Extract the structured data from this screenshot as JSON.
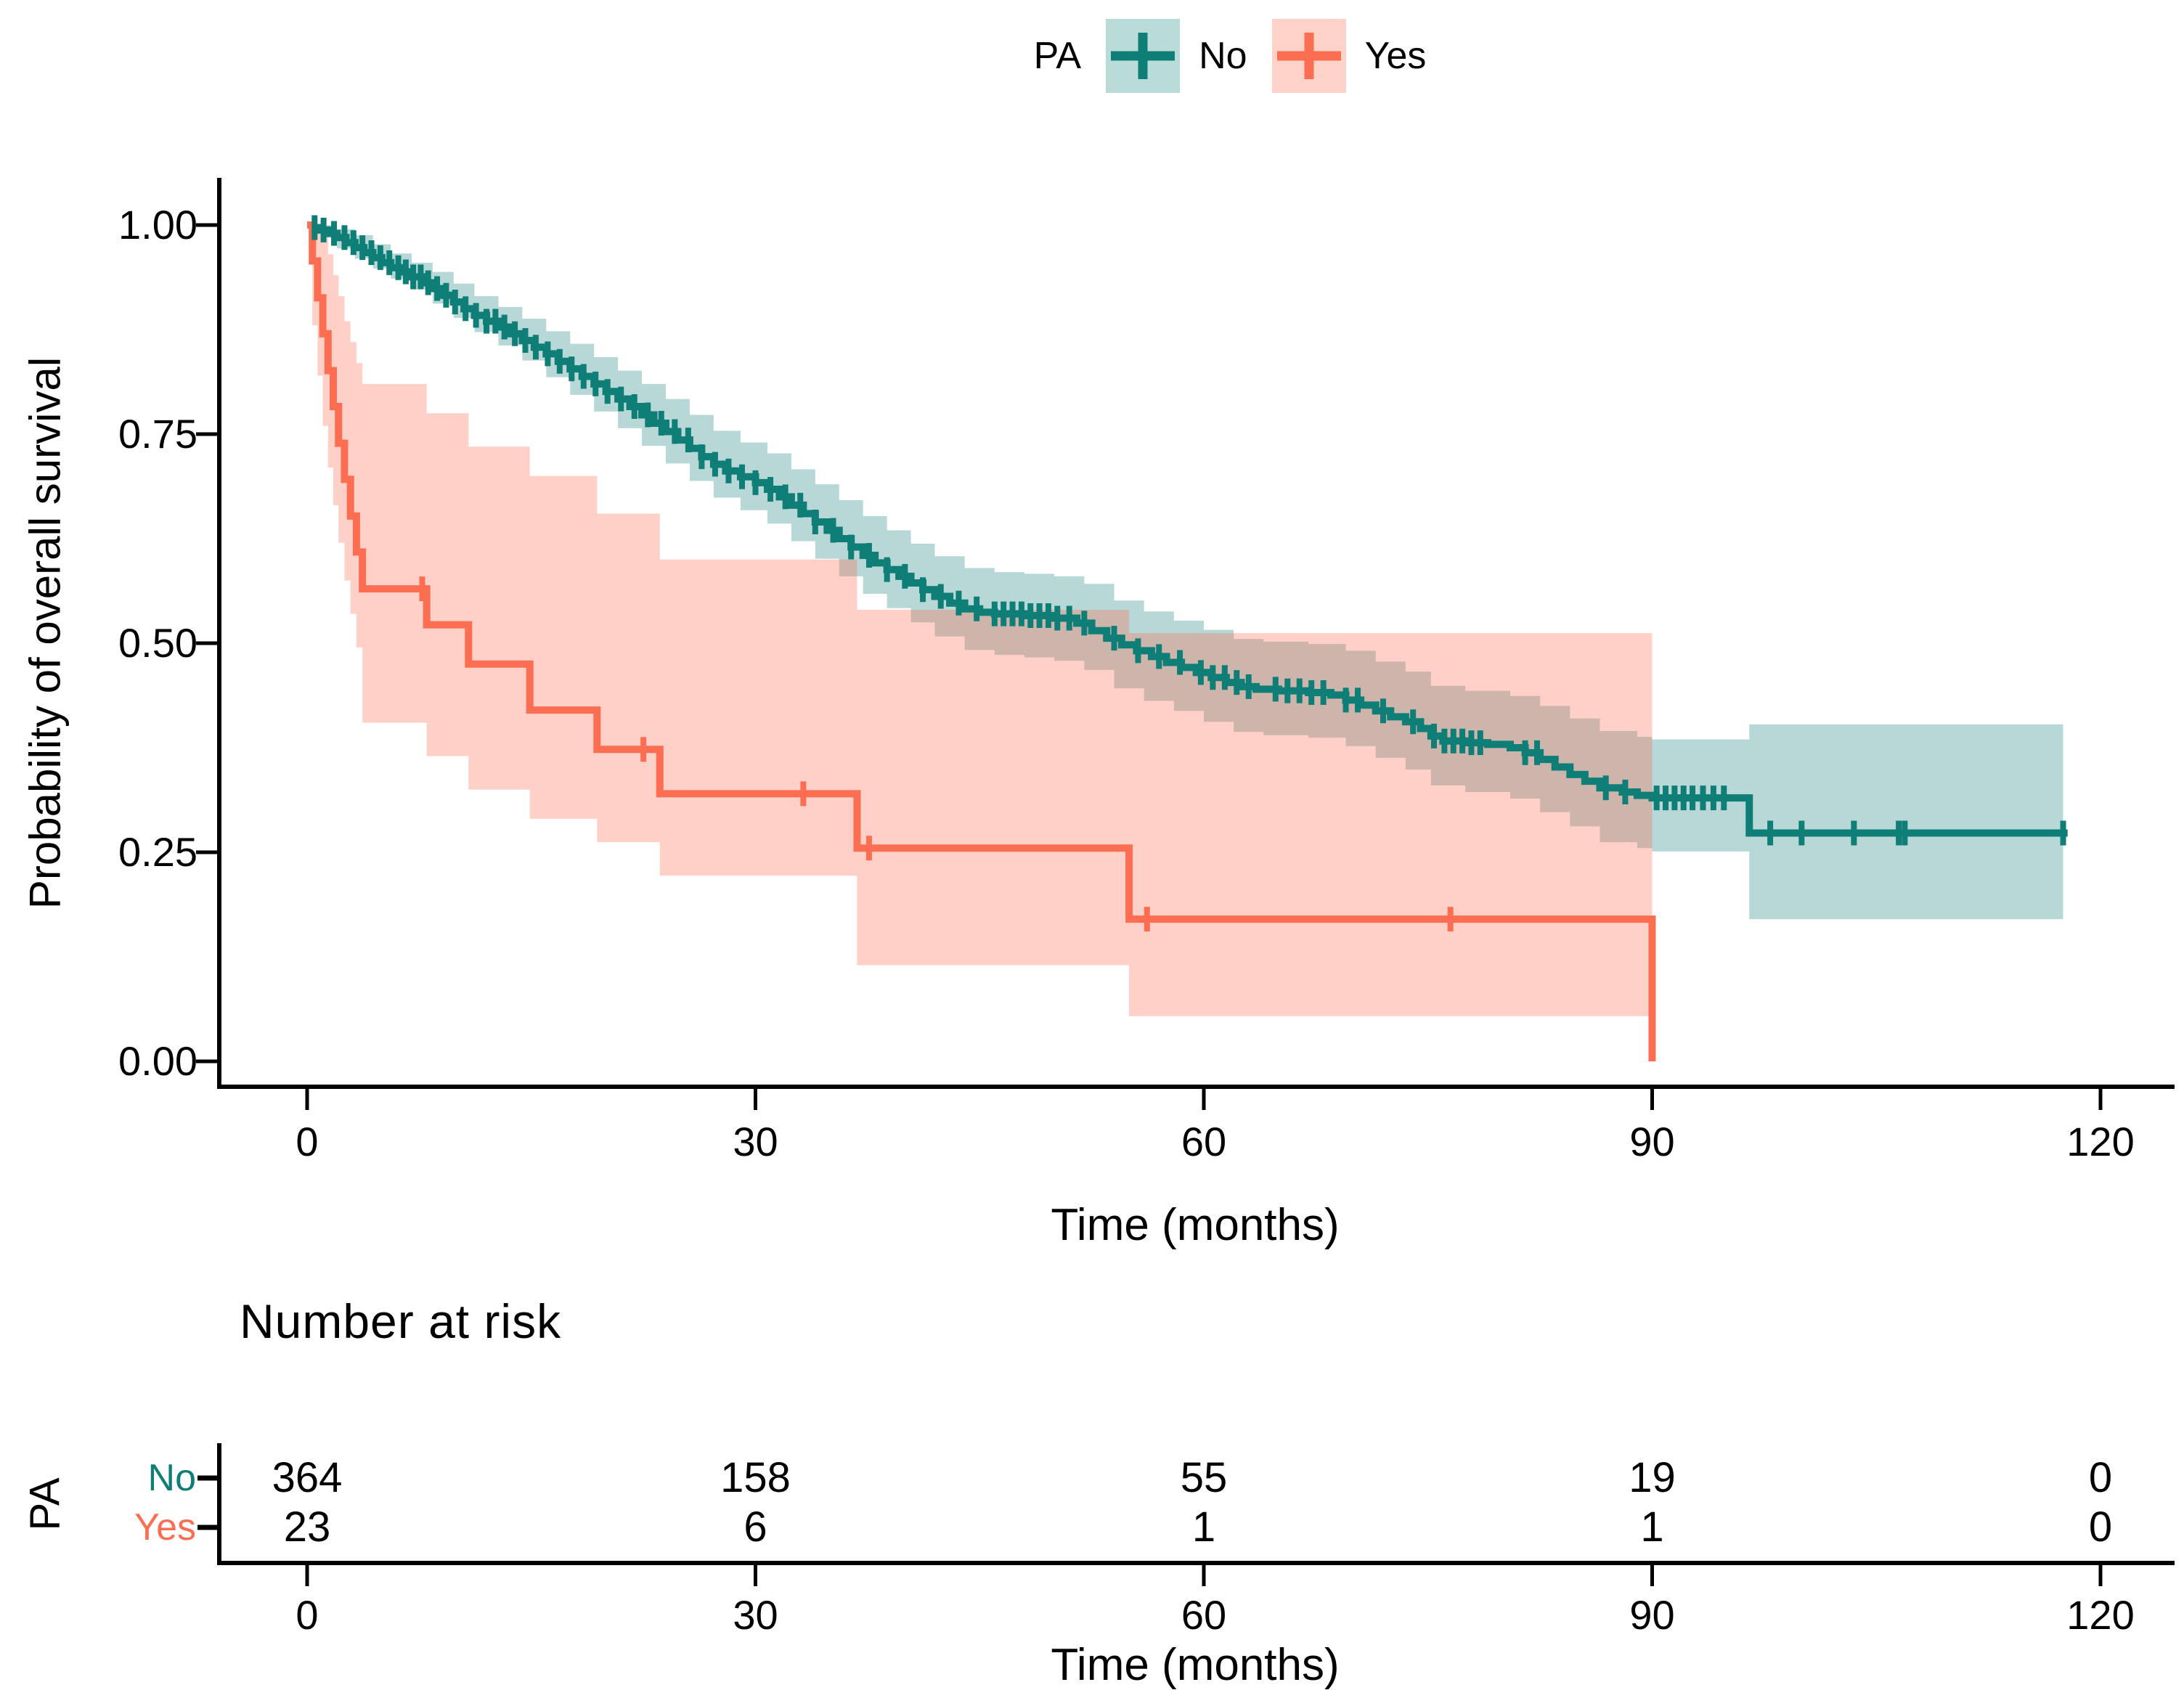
{
  "legend": {
    "title": "PA",
    "items": [
      {
        "label": "No",
        "color": "#0F7E77",
        "swatch": "#B9DCD8",
        "symbol": "plus-censor"
      },
      {
        "label": "Yes",
        "color": "#FB6E52",
        "swatch": "#FDD3C9",
        "symbol": "plus-censor"
      }
    ]
  },
  "chart_data": {
    "type": "line",
    "subtype": "kaplan-meier-step",
    "title": "",
    "xlabel": "Time (months)",
    "ylabel": "Probability of overall survival",
    "xlim": [
      0,
      120
    ],
    "ylim": [
      0,
      1
    ],
    "grid": false,
    "legend_position": "top",
    "x_ticks": [
      0,
      30,
      60,
      90,
      120
    ],
    "x_tick_labels": [
      "0",
      "30",
      "60",
      "90",
      "120"
    ],
    "y_ticks": [
      1.0,
      0.75,
      0.5,
      0.25,
      0.0
    ],
    "y_tick_labels": [
      "1.00",
      "0.75",
      "0.50",
      "0.25",
      "0.00"
    ],
    "series": [
      {
        "name": "No",
        "color": "#0F7E77",
        "band_opacity": 0.3,
        "band_end": 117.5,
        "steps": [
          [
            0,
            1.0
          ],
          [
            0.4,
            0.997
          ],
          [
            0.9,
            0.994
          ],
          [
            1.4,
            0.99
          ],
          [
            2,
            0.985
          ],
          [
            2.6,
            0.979
          ],
          [
            3.2,
            0.973
          ],
          [
            3.8,
            0.967
          ],
          [
            4.4,
            0.961
          ],
          [
            5,
            0.955
          ],
          [
            5.6,
            0.949
          ],
          [
            6.3,
            0.944
          ],
          [
            7,
            0.938
          ],
          [
            7.7,
            0.931
          ],
          [
            8.4,
            0.924
          ],
          [
            9.1,
            0.916
          ],
          [
            9.8,
            0.908
          ],
          [
            10.5,
            0.9
          ],
          [
            11.2,
            0.892
          ],
          [
            12,
            0.885
          ],
          [
            12.8,
            0.878
          ],
          [
            13.6,
            0.87
          ],
          [
            14.4,
            0.862
          ],
          [
            15.2,
            0.854
          ],
          [
            16,
            0.846
          ],
          [
            16.8,
            0.837
          ],
          [
            17.6,
            0.828
          ],
          [
            18.4,
            0.819
          ],
          [
            19.2,
            0.81
          ],
          [
            20,
            0.801
          ],
          [
            20.8,
            0.792
          ],
          [
            21.6,
            0.783
          ],
          [
            22.4,
            0.773
          ],
          [
            23.2,
            0.763
          ],
          [
            24,
            0.753
          ],
          [
            24.8,
            0.743
          ],
          [
            25.6,
            0.733
          ],
          [
            26.4,
            0.723
          ],
          [
            27.2,
            0.714
          ],
          [
            28,
            0.706
          ],
          [
            29,
            0.699
          ],
          [
            30,
            0.692
          ],
          [
            30.8,
            0.684
          ],
          [
            31.6,
            0.675
          ],
          [
            32.4,
            0.665
          ],
          [
            33.2,
            0.655
          ],
          [
            34,
            0.645
          ],
          [
            34.8,
            0.635
          ],
          [
            35.6,
            0.625
          ],
          [
            36.4,
            0.615
          ],
          [
            37.2,
            0.605
          ],
          [
            38,
            0.596
          ],
          [
            38.8,
            0.588
          ],
          [
            39.6,
            0.58
          ],
          [
            40.4,
            0.572
          ],
          [
            41.2,
            0.564
          ],
          [
            42,
            0.556
          ],
          [
            43,
            0.548
          ],
          [
            44,
            0.541
          ],
          [
            45,
            0.537
          ],
          [
            46,
            0.535
          ],
          [
            48,
            0.533
          ],
          [
            50,
            0.53
          ],
          [
            51.5,
            0.524
          ],
          [
            52.5,
            0.515
          ],
          [
            53.5,
            0.506
          ],
          [
            54.5,
            0.498
          ],
          [
            55.5,
            0.491
          ],
          [
            56.5,
            0.484
          ],
          [
            57.5,
            0.477
          ],
          [
            58.5,
            0.471
          ],
          [
            59.5,
            0.465
          ],
          [
            60.5,
            0.459
          ],
          [
            61.5,
            0.453
          ],
          [
            62.5,
            0.448
          ],
          [
            63.5,
            0.445
          ],
          [
            65,
            0.443
          ],
          [
            67,
            0.441
          ],
          [
            68.5,
            0.438
          ],
          [
            69.5,
            0.432
          ],
          [
            70.5,
            0.426
          ],
          [
            71.5,
            0.419
          ],
          [
            72.5,
            0.412
          ],
          [
            73.5,
            0.406
          ],
          [
            74.5,
            0.398
          ],
          [
            75.2,
            0.389
          ],
          [
            76,
            0.383
          ],
          [
            77.5,
            0.381
          ],
          [
            79,
            0.379
          ],
          [
            80.5,
            0.375
          ],
          [
            81.5,
            0.369
          ],
          [
            82.5,
            0.361
          ],
          [
            83.5,
            0.352
          ],
          [
            84.5,
            0.343
          ],
          [
            85.5,
            0.335
          ],
          [
            86.5,
            0.327
          ],
          [
            88,
            0.322
          ],
          [
            89,
            0.318
          ],
          [
            90,
            0.315
          ],
          [
            96.5,
            0.273
          ],
          [
            117.8,
            0.273
          ]
        ],
        "censors": [
          0.5,
          1.1,
          1.8,
          2.5,
          3.1,
          3.7,
          4.3,
          4.9,
          5.5,
          6.1,
          6.6,
          7.1,
          7.6,
          8.1,
          8.7,
          9.3,
          9.9,
          10.6,
          11.3,
          12,
          12.6,
          13.2,
          13.9,
          14.6,
          15.3,
          16.1,
          16.9,
          17.7,
          18.5,
          19.3,
          20.1,
          21,
          21.9,
          22.8,
          23.7,
          24.6,
          25.5,
          26.4,
          27.3,
          28.2,
          29.1,
          30,
          31,
          32,
          33,
          34,
          35.2,
          36.4,
          37.6,
          38.8,
          40,
          41.2,
          42.4,
          43.6,
          44.8,
          46,
          46.6,
          47.2,
          47.8,
          48.4,
          49,
          49.6,
          50.2,
          51,
          52,
          54,
          55.6,
          57,
          58.4,
          59.8,
          60.6,
          61.4,
          62.2,
          63,
          64.8,
          65.6,
          66.4,
          67.2,
          68,
          69.5,
          70.3,
          72,
          74,
          75.4,
          76.1,
          76.7,
          77.3,
          77.9,
          78.5,
          81.5,
          82.3,
          86.9,
          88.2,
          90.3,
          90.9,
          91.5,
          92.1,
          92.7,
          93.4,
          94.1,
          94.8,
          97.9,
          100,
          103.5,
          106.5,
          106.9,
          117.5
        ],
        "ci": [
          [
            0,
            1,
            1
          ],
          [
            0.9,
            0.985,
            1
          ],
          [
            2,
            0.972,
            0.995
          ],
          [
            3.2,
            0.96,
            0.988
          ],
          [
            4.4,
            0.948,
            0.977
          ],
          [
            5.6,
            0.936,
            0.966
          ],
          [
            7,
            0.923,
            0.955
          ],
          [
            8.4,
            0.906,
            0.944
          ],
          [
            9.8,
            0.889,
            0.93
          ],
          [
            11.2,
            0.872,
            0.915
          ],
          [
            12.8,
            0.856,
            0.902
          ],
          [
            14.4,
            0.838,
            0.888
          ],
          [
            16,
            0.818,
            0.873
          ],
          [
            17.6,
            0.797,
            0.858
          ],
          [
            19.2,
            0.777,
            0.842
          ],
          [
            20.8,
            0.757,
            0.826
          ],
          [
            22.4,
            0.736,
            0.81
          ],
          [
            24,
            0.715,
            0.792
          ],
          [
            25.6,
            0.694,
            0.773
          ],
          [
            27.2,
            0.674,
            0.754
          ],
          [
            29,
            0.659,
            0.74
          ],
          [
            30.8,
            0.643,
            0.727
          ],
          [
            32.4,
            0.622,
            0.708
          ],
          [
            34,
            0.601,
            0.69
          ],
          [
            35.6,
            0.58,
            0.671
          ],
          [
            37.2,
            0.559,
            0.652
          ],
          [
            38.8,
            0.542,
            0.635
          ],
          [
            40.4,
            0.525,
            0.619
          ],
          [
            42,
            0.508,
            0.604
          ],
          [
            44,
            0.492,
            0.59
          ],
          [
            46,
            0.486,
            0.585
          ],
          [
            48,
            0.483,
            0.583
          ],
          [
            50,
            0.479,
            0.58
          ],
          [
            52,
            0.468,
            0.571
          ],
          [
            54,
            0.446,
            0.551
          ],
          [
            56,
            0.431,
            0.538
          ],
          [
            58,
            0.419,
            0.527
          ],
          [
            60,
            0.406,
            0.516
          ],
          [
            62,
            0.394,
            0.505
          ],
          [
            64,
            0.39,
            0.502
          ],
          [
            67,
            0.387,
            0.499
          ],
          [
            69.5,
            0.377,
            0.491
          ],
          [
            71.5,
            0.363,
            0.478
          ],
          [
            73.5,
            0.349,
            0.466
          ],
          [
            75.2,
            0.33,
            0.449
          ],
          [
            77.5,
            0.322,
            0.443
          ],
          [
            80.5,
            0.314,
            0.437
          ],
          [
            82.5,
            0.298,
            0.425
          ],
          [
            84.5,
            0.281,
            0.41
          ],
          [
            86.5,
            0.262,
            0.395
          ],
          [
            89,
            0.255,
            0.388
          ],
          [
            90,
            0.251,
            0.385
          ],
          [
            96.5,
            0.17,
            0.403
          ],
          [
            117.5,
            0.17,
            0.403
          ]
        ]
      },
      {
        "name": "Yes",
        "color": "#FB6E52",
        "band_opacity": 0.32,
        "band_end": 90,
        "steps": [
          [
            0,
            1.0
          ],
          [
            0.35,
            0.957
          ],
          [
            0.7,
            0.913
          ],
          [
            1.05,
            0.87
          ],
          [
            1.4,
            0.826
          ],
          [
            1.75,
            0.783
          ],
          [
            2.1,
            0.739
          ],
          [
            2.5,
            0.696
          ],
          [
            2.9,
            0.652
          ],
          [
            3.3,
            0.609
          ],
          [
            3.7,
            0.565
          ],
          [
            8,
            0.522
          ],
          [
            10.8,
            0.475
          ],
          [
            14.9,
            0.42
          ],
          [
            19.4,
            0.373
          ],
          [
            23.6,
            0.32
          ],
          [
            36.8,
            0.255
          ],
          [
            55,
            0.17
          ],
          [
            90,
            0.17
          ],
          [
            90,
            0.0
          ]
        ],
        "censors": [
          7.7,
          22.5,
          33.2,
          37.6,
          56.2,
          76.5
        ],
        "ci": [
          [
            0,
            1,
            1
          ],
          [
            0.35,
            0.88,
            1
          ],
          [
            0.7,
            0.82,
            1
          ],
          [
            1.05,
            0.76,
            0.99
          ],
          [
            1.4,
            0.71,
            0.965
          ],
          [
            1.75,
            0.665,
            0.94
          ],
          [
            2.1,
            0.62,
            0.915
          ],
          [
            2.5,
            0.575,
            0.885
          ],
          [
            2.9,
            0.535,
            0.86
          ],
          [
            3.3,
            0.495,
            0.835
          ],
          [
            3.7,
            0.405,
            0.81
          ],
          [
            8,
            0.365,
            0.775
          ],
          [
            10.8,
            0.325,
            0.735
          ],
          [
            14.9,
            0.29,
            0.7
          ],
          [
            19.4,
            0.262,
            0.655
          ],
          [
            23.6,
            0.222,
            0.6
          ],
          [
            36.8,
            0.115,
            0.54
          ],
          [
            55,
            0.054,
            0.512
          ],
          [
            90,
            0.054,
            0.512
          ]
        ]
      }
    ]
  },
  "risk_table": {
    "title": "Number at risk",
    "group_label": "PA",
    "xlabel": "Time (months)",
    "x_ticks": [
      0,
      30,
      60,
      90,
      120
    ],
    "x_tick_labels": [
      "0",
      "30",
      "60",
      "90",
      "120"
    ],
    "rows": [
      {
        "label": "No",
        "color": "#0F7E77",
        "values": [
          "364",
          "158",
          "55",
          "19",
          "0"
        ]
      },
      {
        "label": "Yes",
        "color": "#FB6E52",
        "values": [
          "23",
          "6",
          "1",
          "1",
          "0"
        ]
      }
    ]
  }
}
